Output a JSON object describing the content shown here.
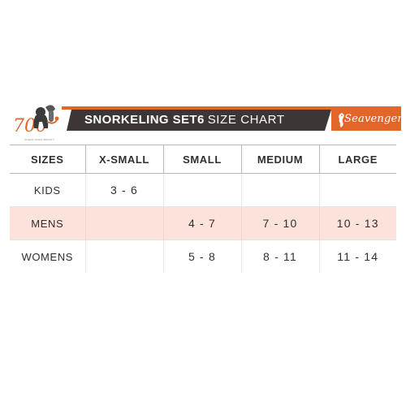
{
  "header": {
    "logo_left": {
      "mark_text": "700",
      "tagline": "OCEAN OVER INFINITY"
    },
    "title_bold": "SNORKELING SET6",
    "title_light": "SIZE CHART",
    "brand": {
      "name": "Seavenger",
      "icon": "seahorse-icon"
    },
    "colors": {
      "accent": "#e2662a",
      "banner_dark": "#3d3636",
      "highlight_row": "#fbe3dc"
    }
  },
  "size_chart": {
    "columns": [
      "SIZES",
      "X-SMALL",
      "SMALL",
      "MEDIUM",
      "LARGE"
    ],
    "rows": [
      {
        "label": "KIDS",
        "values": [
          "3 - 6",
          "",
          "",
          ""
        ]
      },
      {
        "label": "MENS",
        "values": [
          "",
          "4 - 7",
          "7 - 10",
          "10 - 13"
        ],
        "highlighted": true
      },
      {
        "label": "WOMENS",
        "values": [
          "",
          "5 - 8",
          "8 - 11",
          "11 - 14"
        ]
      }
    ]
  }
}
